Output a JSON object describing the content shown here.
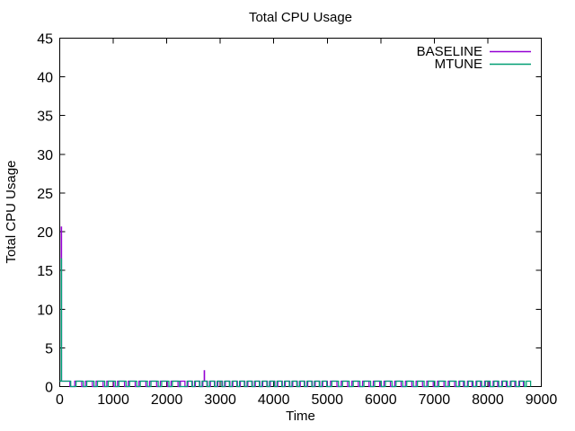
{
  "window": {
    "background": "#ffffff",
    "text_color": "#000000",
    "axis_color": "#000000"
  },
  "chart_data": {
    "type": "line",
    "title": "Total CPU Usage",
    "xlabel": "Time",
    "ylabel": "Total CPU Usage",
    "xlim": [
      0,
      9000
    ],
    "ylim": [
      0,
      45
    ],
    "xticks": [
      0,
      1000,
      2000,
      3000,
      4000,
      5000,
      6000,
      7000,
      8000,
      9000
    ],
    "yticks": [
      0,
      5,
      10,
      15,
      20,
      25,
      30,
      35,
      40,
      45
    ],
    "grid": false,
    "legend": {
      "position": "top-right-inside",
      "entries": [
        "BASELINE",
        "MTUNE"
      ]
    },
    "notes": "Both series spike at t≈30 (BASELINE to ~20.6, MTUNE to ~16.5), then oscillate as a square wave between 0 and ~0.7 until t≈8800; BASELINE has a brief spike to ~2 at t≈2700.",
    "series": [
      {
        "name": "BASELINE",
        "color": "#9400d3",
        "style": "steps",
        "steps": [
          [
            0,
            0.7
          ],
          [
            28,
            20.6
          ],
          [
            34,
            0.7
          ],
          [
            190,
            0
          ],
          [
            280,
            0.7
          ],
          [
            410,
            0
          ],
          [
            480,
            0.7
          ],
          [
            610,
            0
          ],
          [
            680,
            0.7
          ],
          [
            810,
            0
          ],
          [
            880,
            0.7
          ],
          [
            1010,
            0
          ],
          [
            1080,
            0.7
          ],
          [
            1210,
            0
          ],
          [
            1280,
            0.7
          ],
          [
            1410,
            0
          ],
          [
            1480,
            0.7
          ],
          [
            1610,
            0
          ],
          [
            1680,
            0.7
          ],
          [
            1810,
            0
          ],
          [
            1880,
            0.7
          ],
          [
            2010,
            0
          ],
          [
            2080,
            0.7
          ],
          [
            2210,
            0
          ],
          [
            2255,
            0.7
          ],
          [
            2340,
            0
          ],
          [
            2395,
            0.7
          ],
          [
            2480,
            0
          ],
          [
            2535,
            0.7
          ],
          [
            2620,
            0
          ],
          [
            2675,
            0.7
          ],
          [
            2700,
            2.05
          ],
          [
            2706,
            0.7
          ],
          [
            2760,
            0
          ],
          [
            2815,
            0.7
          ],
          [
            2900,
            0
          ],
          [
            2955,
            0.7
          ],
          [
            3040,
            0
          ],
          [
            3095,
            0.7
          ],
          [
            3180,
            0
          ],
          [
            3235,
            0.7
          ],
          [
            3320,
            0
          ],
          [
            3375,
            0.7
          ],
          [
            3460,
            0
          ],
          [
            3515,
            0.7
          ],
          [
            3600,
            0
          ],
          [
            3655,
            0.7
          ],
          [
            3740,
            0
          ],
          [
            3795,
            0.7
          ],
          [
            3880,
            0
          ],
          [
            3935,
            0.7
          ],
          [
            4020,
            0
          ],
          [
            4075,
            0.7
          ],
          [
            4160,
            0
          ],
          [
            4215,
            0.7
          ],
          [
            4300,
            0
          ],
          [
            4355,
            0.7
          ],
          [
            4440,
            0
          ],
          [
            4495,
            0.7
          ],
          [
            4580,
            0
          ],
          [
            4635,
            0.7
          ],
          [
            4720,
            0
          ],
          [
            4775,
            0.7
          ],
          [
            4860,
            0
          ],
          [
            4915,
            0.7
          ],
          [
            5000,
            0
          ],
          [
            5060,
            0.7
          ],
          [
            5180,
            0
          ],
          [
            5260,
            0.7
          ],
          [
            5380,
            0
          ],
          [
            5460,
            0.7
          ],
          [
            5580,
            0
          ],
          [
            5660,
            0.7
          ],
          [
            5780,
            0
          ],
          [
            5860,
            0.7
          ],
          [
            5980,
            0
          ],
          [
            6060,
            0.7
          ],
          [
            6180,
            0
          ],
          [
            6260,
            0.7
          ],
          [
            6380,
            0
          ],
          [
            6460,
            0.7
          ],
          [
            6580,
            0
          ],
          [
            6660,
            0.7
          ],
          [
            6780,
            0
          ],
          [
            6860,
            0.7
          ],
          [
            6980,
            0
          ],
          [
            7060,
            0.7
          ],
          [
            7180,
            0
          ],
          [
            7260,
            0.7
          ],
          [
            7380,
            0
          ],
          [
            7460,
            0.7
          ],
          [
            7545,
            0
          ],
          [
            7620,
            0.7
          ],
          [
            7705,
            0
          ],
          [
            7780,
            0.7
          ],
          [
            7865,
            0
          ],
          [
            7940,
            0.7
          ],
          [
            8025,
            0
          ],
          [
            8100,
            0.7
          ],
          [
            8185,
            0
          ],
          [
            8260,
            0.7
          ],
          [
            8345,
            0
          ],
          [
            8420,
            0.7
          ],
          [
            8505,
            0
          ],
          [
            8580,
            0.7
          ],
          [
            8665,
            0
          ]
        ]
      },
      {
        "name": "MTUNE",
        "color": "#009e73",
        "style": "steps",
        "steps": [
          [
            0,
            0.7
          ],
          [
            28,
            16.5
          ],
          [
            33,
            0.7
          ],
          [
            205,
            0
          ],
          [
            305,
            0.7
          ],
          [
            440,
            0
          ],
          [
            505,
            0.7
          ],
          [
            640,
            0
          ],
          [
            705,
            0.7
          ],
          [
            840,
            0
          ],
          [
            905,
            0.7
          ],
          [
            1040,
            0
          ],
          [
            1105,
            0.7
          ],
          [
            1240,
            0
          ],
          [
            1305,
            0.7
          ],
          [
            1440,
            0
          ],
          [
            1505,
            0.7
          ],
          [
            1640,
            0
          ],
          [
            1705,
            0.7
          ],
          [
            1840,
            0
          ],
          [
            1905,
            0.7
          ],
          [
            2040,
            0
          ],
          [
            2105,
            0.7
          ],
          [
            2240,
            0
          ],
          [
            2380,
            0.7
          ],
          [
            2470,
            0
          ],
          [
            2520,
            0.7
          ],
          [
            2610,
            0
          ],
          [
            2660,
            0.7
          ],
          [
            2750,
            0
          ],
          [
            2800,
            0.7
          ],
          [
            2890,
            0
          ],
          [
            2940,
            0.7
          ],
          [
            3030,
            0
          ],
          [
            3080,
            0.7
          ],
          [
            3170,
            0
          ],
          [
            3220,
            0.7
          ],
          [
            3310,
            0
          ],
          [
            3360,
            0.7
          ],
          [
            3450,
            0
          ],
          [
            3500,
            0.7
          ],
          [
            3590,
            0
          ],
          [
            3640,
            0.7
          ],
          [
            3730,
            0
          ],
          [
            3780,
            0.7
          ],
          [
            3870,
            0
          ],
          [
            3920,
            0.7
          ],
          [
            4010,
            0
          ],
          [
            4060,
            0.7
          ],
          [
            4150,
            0
          ],
          [
            4200,
            0.7
          ],
          [
            4290,
            0
          ],
          [
            4340,
            0.7
          ],
          [
            4430,
            0
          ],
          [
            4480,
            0.7
          ],
          [
            4570,
            0
          ],
          [
            4620,
            0.7
          ],
          [
            4710,
            0
          ],
          [
            4760,
            0.7
          ],
          [
            4850,
            0
          ],
          [
            4900,
            0.7
          ],
          [
            4990,
            0
          ],
          [
            5085,
            0.7
          ],
          [
            5210,
            0
          ],
          [
            5285,
            0.7
          ],
          [
            5410,
            0
          ],
          [
            5485,
            0.7
          ],
          [
            5610,
            0
          ],
          [
            5685,
            0.7
          ],
          [
            5810,
            0
          ],
          [
            5885,
            0.7
          ],
          [
            6010,
            0
          ],
          [
            6085,
            0.7
          ],
          [
            6210,
            0
          ],
          [
            6285,
            0.7
          ],
          [
            6410,
            0
          ],
          [
            6485,
            0.7
          ],
          [
            6610,
            0
          ],
          [
            6685,
            0.7
          ],
          [
            6810,
            0
          ],
          [
            6885,
            0.7
          ],
          [
            7010,
            0
          ],
          [
            7085,
            0.7
          ],
          [
            7210,
            0
          ],
          [
            7285,
            0.7
          ],
          [
            7410,
            0
          ],
          [
            7475,
            0.7
          ],
          [
            7565,
            0
          ],
          [
            7635,
            0.7
          ],
          [
            7725,
            0
          ],
          [
            7795,
            0.7
          ],
          [
            7885,
            0
          ],
          [
            7955,
            0.7
          ],
          [
            8045,
            0
          ],
          [
            8115,
            0.7
          ],
          [
            8205,
            0
          ],
          [
            8275,
            0.7
          ],
          [
            8365,
            0
          ],
          [
            8435,
            0.7
          ],
          [
            8525,
            0
          ],
          [
            8595,
            0.7
          ],
          [
            8685,
            0
          ],
          [
            8720,
            0.7
          ],
          [
            8800,
            0
          ]
        ]
      }
    ]
  }
}
